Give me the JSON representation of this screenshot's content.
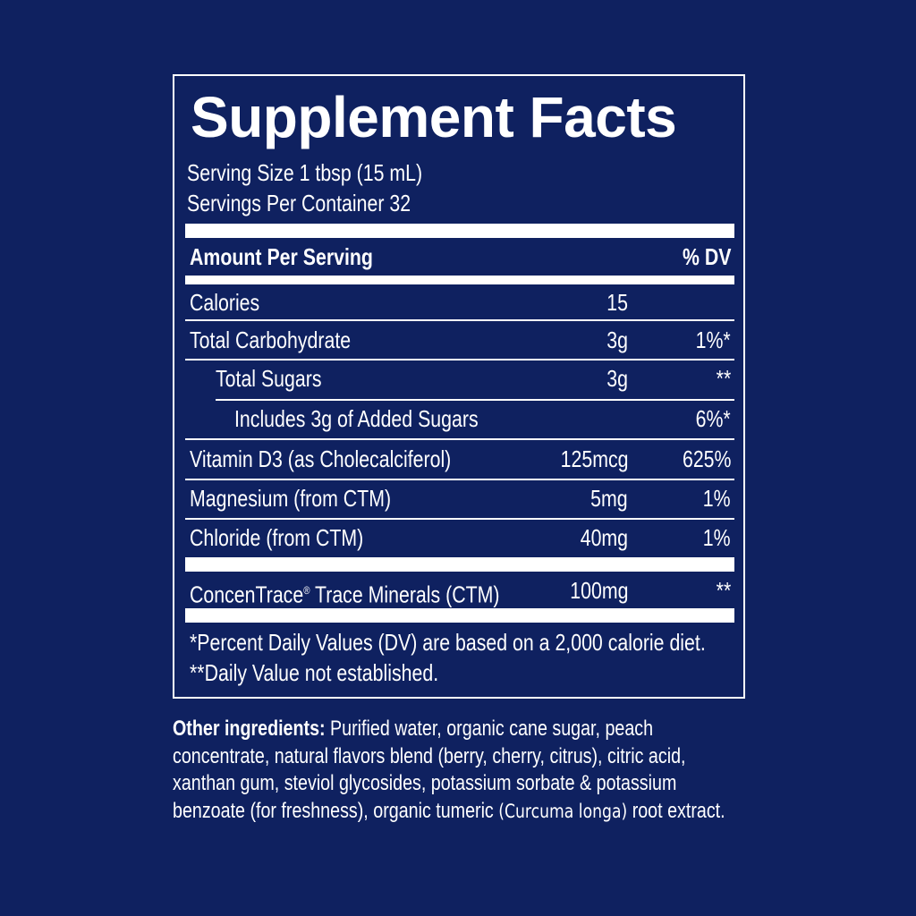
{
  "title": "Supplement Facts",
  "serving_size": "Serving Size 1 tbsp (15 mL)",
  "servings_per_container": "Servings Per Container 32",
  "header": {
    "amount": "Amount Per Serving",
    "dv": "% DV"
  },
  "rows": [
    {
      "name": "Calories",
      "amount": "15",
      "dv": ""
    },
    {
      "name": "Total Carbohydrate",
      "amount": "3g",
      "dv": "1%*"
    },
    {
      "name": "Total Sugars",
      "amount": "3g",
      "dv": "**"
    },
    {
      "name": "Includes 3g of Added Sugars",
      "amount": "",
      "dv": "6%*"
    },
    {
      "name": "Vitamin D3 (as Cholecalciferol)",
      "amount": "125mcg",
      "dv": "625%"
    },
    {
      "name": "Magnesium (from CTM)",
      "amount": "5mg",
      "dv": "1%"
    },
    {
      "name": "Chloride (from CTM)",
      "amount": "40mg",
      "dv": "1%"
    }
  ],
  "ctm": {
    "name": "ConcenTrace",
    "reg": "®",
    "name_rest": " Trace Minerals (CTM)",
    "amount": "100mg",
    "dv": "**"
  },
  "footnotes": [
    "*Percent Daily Values (DV) are based on a 2,000 calorie diet.",
    "**Daily Value not established."
  ],
  "ingredients": {
    "label": "Other ingredients:",
    "text_1": " Purified water, organic cane sugar, peach concentrate, natural flavors blend (berry, cherry, citrus), citric acid, xanthan gum, steviol glycosides, potassium sorbate & potassium benzoate (for freshness), organic tumeric ",
    "italic": "(Curcuma longa)",
    "text_2": " root extract."
  },
  "colors": {
    "background": "#0f2160",
    "text": "#ffffff"
  }
}
